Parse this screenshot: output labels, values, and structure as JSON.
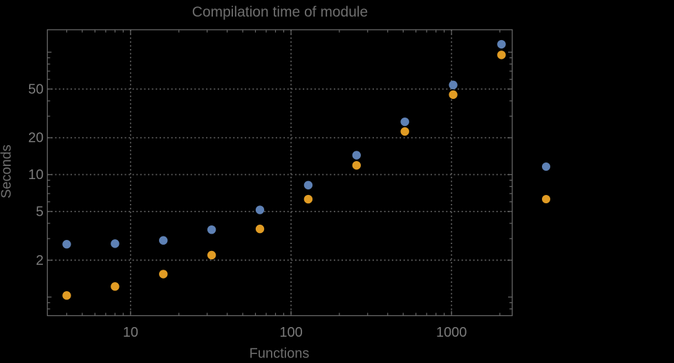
{
  "title": "Compilation time of module",
  "colors": {
    "background": "#000000",
    "frame": "#696969",
    "grid": "#5c5c5c",
    "tick_label": "#7b7b7b",
    "axis_label": "#6e6e6e",
    "series_blue": "#5e81b5",
    "series_orange": "#e19c24"
  },
  "chart_data": {
    "type": "scatter",
    "title": "Compilation time of module",
    "xlabel": "Functions",
    "ylabel": "Seconds",
    "x_scale": "log",
    "y_scale": "log",
    "grid": true,
    "x": [
      4,
      8,
      16,
      32,
      64,
      128,
      256,
      512,
      1024,
      2048
    ],
    "series": [
      {
        "name": "blue",
        "color": "#5e81b5",
        "values": [
          2.7,
          2.73,
          2.9,
          3.55,
          5.15,
          8.2,
          14.4,
          27,
          54,
          116
        ]
      },
      {
        "name": "orange",
        "color": "#e19c24",
        "values": [
          1.03,
          1.22,
          1.54,
          2.2,
          3.6,
          6.3,
          11.9,
          22.5,
          45,
          95
        ]
      }
    ],
    "x_ticks": [
      10,
      100,
      1000
    ],
    "x_tick_labels": [
      "10",
      "100",
      "1000"
    ],
    "y_ticks": [
      2,
      5,
      10,
      20,
      50
    ],
    "y_tick_labels": [
      "2",
      "5",
      "10",
      "20",
      "50"
    ],
    "y_ticks_unlabeled": [
      1,
      100
    ],
    "x_range": [
      3.03,
      2390
    ],
    "y_range": [
      0.705,
      152.5
    ],
    "legend_position": "right",
    "legend_markers": [
      {
        "name": "blue",
        "color": "#5e81b5"
      },
      {
        "name": "orange",
        "color": "#e19c24"
      }
    ]
  }
}
